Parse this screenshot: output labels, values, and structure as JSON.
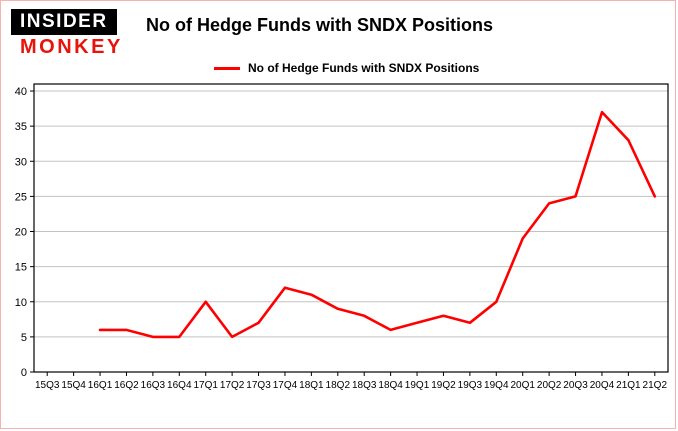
{
  "logo": {
    "line1": "INSIDER",
    "line2": "MONKEY"
  },
  "header": {
    "title": "No of Hedge Funds with SNDX Positions"
  },
  "legend": {
    "label": "No of Hedge Funds with SNDX Positions"
  },
  "colors": {
    "line": "#fe0000",
    "grid": "#c3c3c3",
    "axis": "#000000",
    "logo_red": "#e8140c",
    "border": "#f5b3ae"
  },
  "chart_data": {
    "type": "line",
    "title": "No of Hedge Funds with SNDX Positions",
    "categories": [
      "15Q3",
      "15Q4",
      "16Q1",
      "16Q2",
      "16Q3",
      "16Q4",
      "17Q1",
      "17Q2",
      "17Q3",
      "17Q4",
      "18Q1",
      "18Q2",
      "18Q3",
      "18Q4",
      "19Q1",
      "19Q2",
      "19Q3",
      "19Q4",
      "20Q1",
      "20Q2",
      "20Q3",
      "20Q4",
      "21Q1",
      "21Q2"
    ],
    "series": [
      {
        "name": "No of Hedge Funds with SNDX Positions",
        "color": "#fe0000",
        "values": [
          null,
          null,
          6,
          6,
          5,
          5,
          10,
          5,
          7,
          12,
          11,
          9,
          8,
          6,
          7,
          8,
          7,
          10,
          19,
          24,
          25,
          37,
          33,
          25
        ]
      }
    ],
    "xlabel": "",
    "ylabel": "",
    "ylim": [
      0,
      41
    ],
    "yticks": [
      0,
      5,
      10,
      15,
      20,
      25,
      30,
      35,
      40
    ],
    "grid": true,
    "legend_position": "top"
  }
}
